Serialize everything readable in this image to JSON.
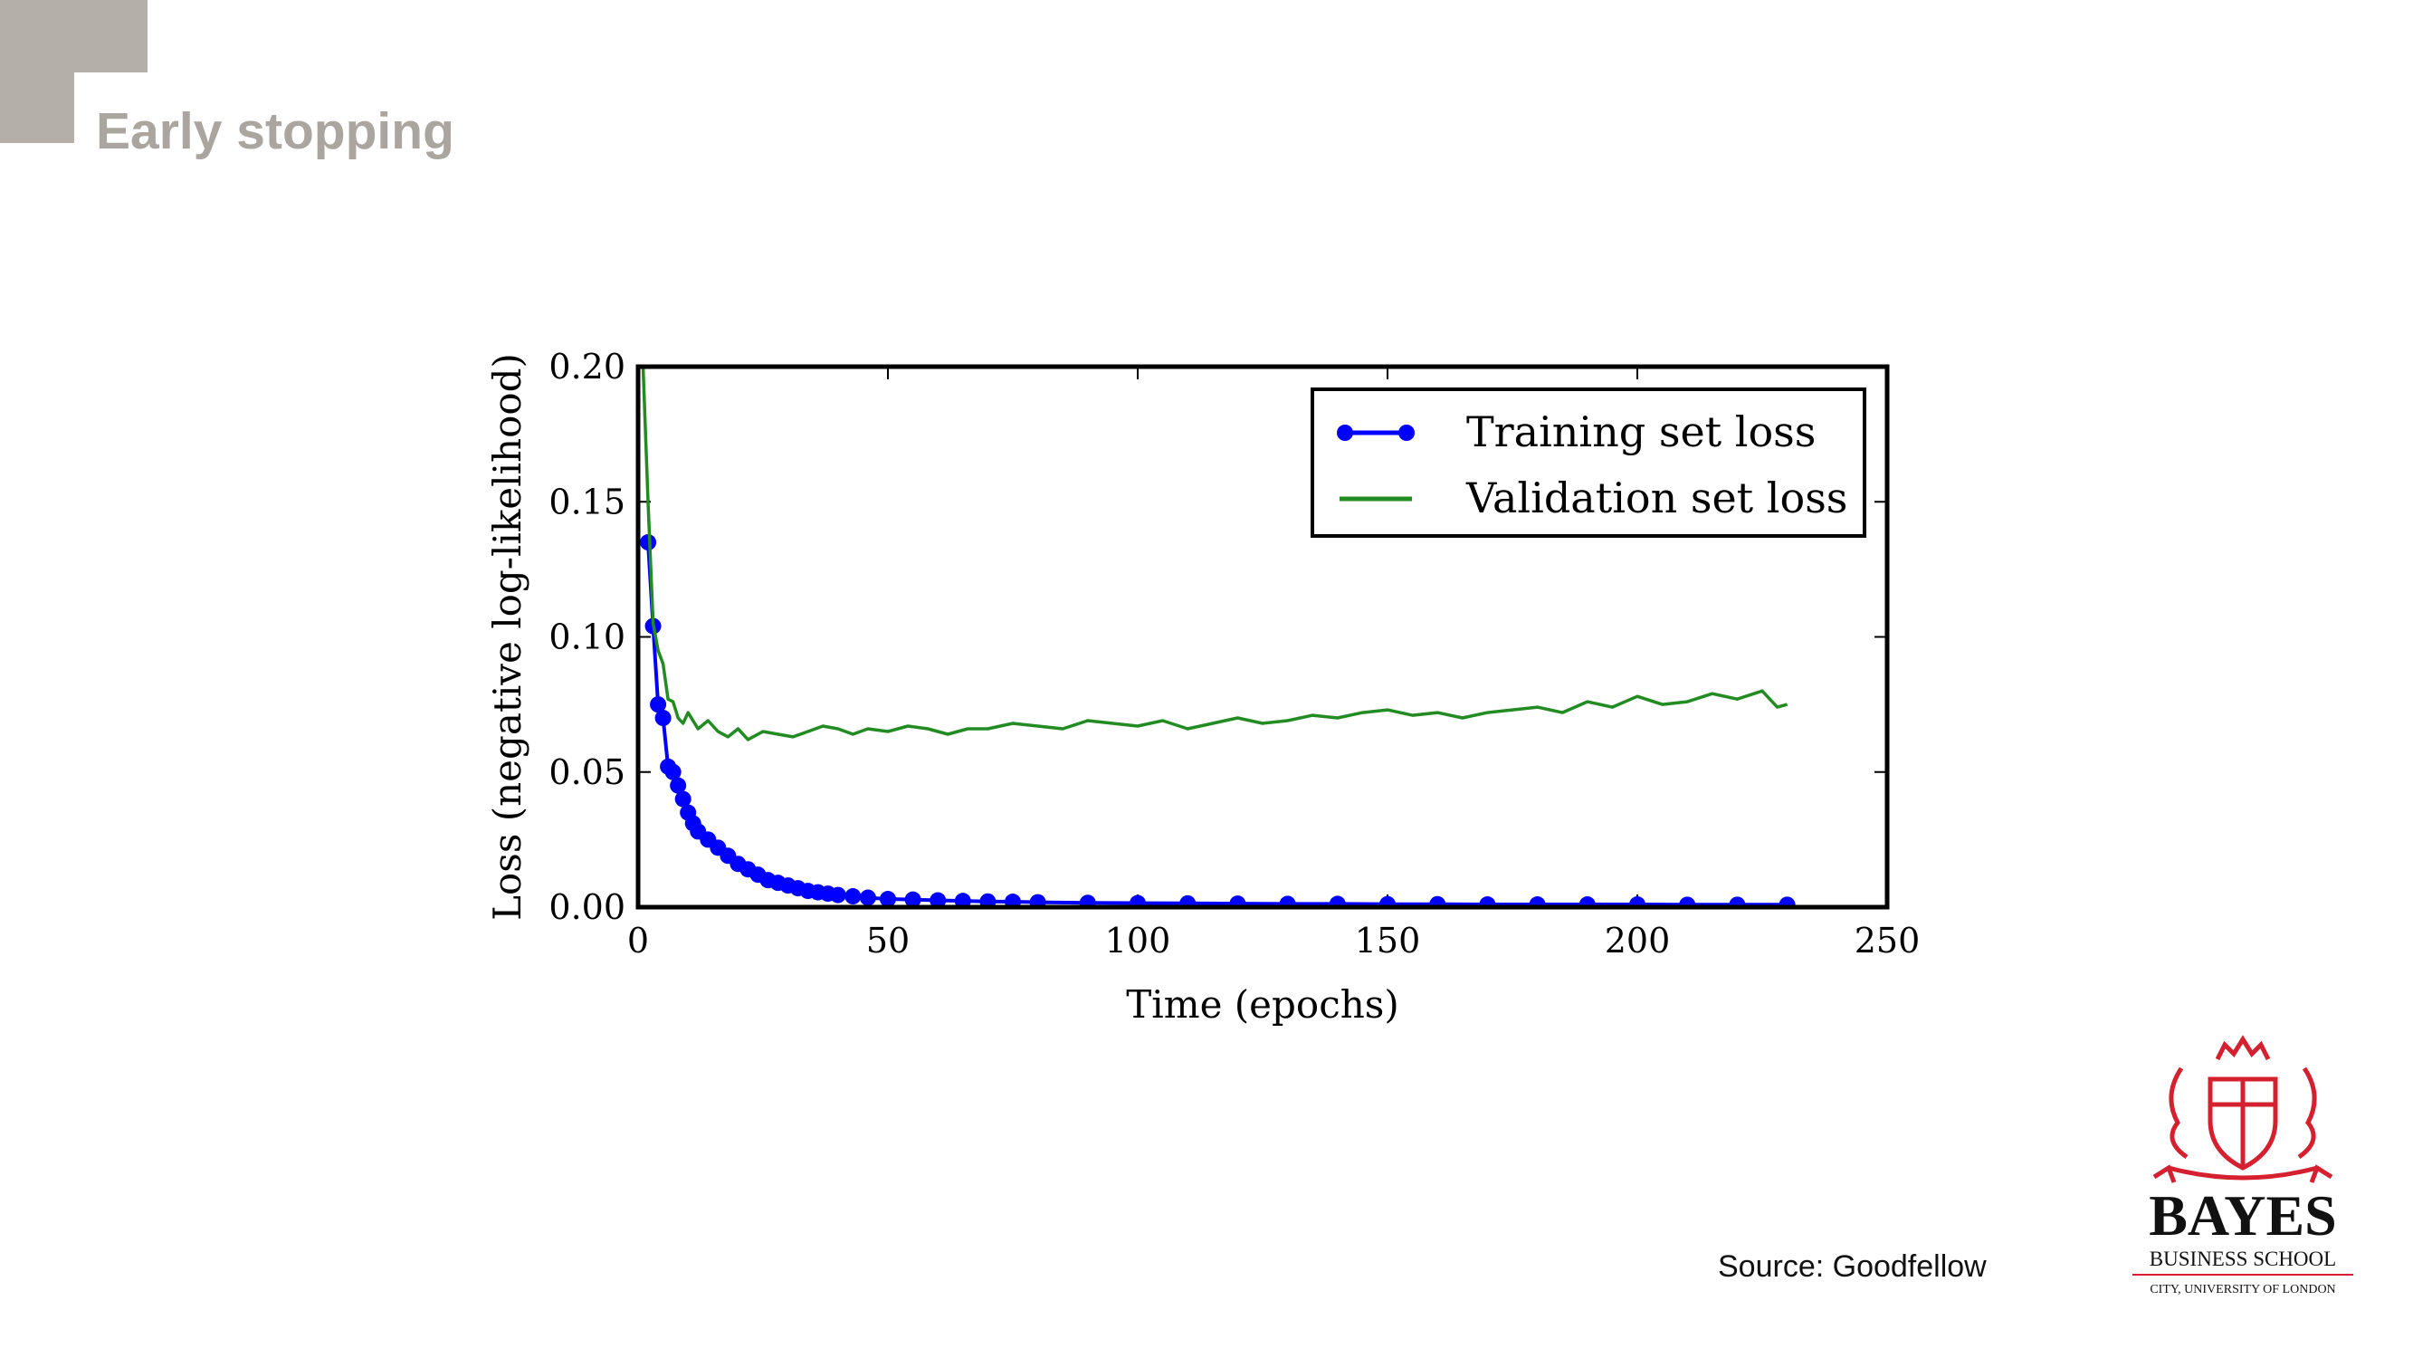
{
  "slide": {
    "title": "Early stopping",
    "source": "Source: Goodfellow",
    "brand_color": "#d4202f",
    "title_color": "#aaa59f",
    "corner_color": "#b4afa8"
  },
  "logo": {
    "wordmark": "BAYES",
    "line1": "BUSINESS SCHOOL",
    "line2": "CITY, UNIVERSITY OF LONDON",
    "icon": "coat-of-arms-icon"
  },
  "chart_data": {
    "type": "line",
    "title": "",
    "xlabel": "Time (epochs)",
    "ylabel": "Loss (negative log-likelihood)",
    "xlim": [
      0,
      250
    ],
    "ylim": [
      0,
      0.2
    ],
    "xticks": [
      0,
      50,
      100,
      150,
      200,
      250
    ],
    "yticks": [
      0.0,
      0.05,
      0.1,
      0.15,
      0.2
    ],
    "xtick_labels": [
      "0",
      "50",
      "100",
      "150",
      "200",
      "250"
    ],
    "ytick_labels": [
      "0.00",
      "0.05",
      "0.10",
      "0.15",
      "0.20"
    ],
    "grid": false,
    "legend_position": "top-right",
    "series": [
      {
        "name": "Training set loss",
        "color": "#0000ff",
        "marker": "circle",
        "x": [
          2,
          3,
          4,
          5,
          6,
          7,
          8,
          9,
          10,
          11,
          12,
          14,
          16,
          18,
          20,
          22,
          24,
          26,
          28,
          30,
          32,
          34,
          36,
          38,
          40,
          43,
          46,
          50,
          55,
          60,
          65,
          70,
          75,
          80,
          90,
          100,
          110,
          120,
          130,
          140,
          150,
          160,
          170,
          180,
          190,
          200,
          210,
          220,
          230
        ],
        "y": [
          0.135,
          0.104,
          0.075,
          0.07,
          0.052,
          0.05,
          0.045,
          0.04,
          0.035,
          0.031,
          0.028,
          0.025,
          0.022,
          0.019,
          0.016,
          0.014,
          0.012,
          0.01,
          0.009,
          0.008,
          0.007,
          0.006,
          0.0055,
          0.005,
          0.0045,
          0.004,
          0.0035,
          0.003,
          0.0028,
          0.0025,
          0.0023,
          0.0021,
          0.002,
          0.0018,
          0.0016,
          0.0015,
          0.0014,
          0.0013,
          0.0012,
          0.0012,
          0.0011,
          0.0011,
          0.001,
          0.001,
          0.001,
          0.001,
          0.0009,
          0.0009,
          0.0009
        ]
      },
      {
        "name": "Validation set loss",
        "color": "#228b22",
        "marker": "none",
        "x": [
          1,
          2,
          3,
          4,
          5,
          6,
          7,
          8,
          9,
          10,
          12,
          14,
          16,
          18,
          20,
          22,
          25,
          28,
          31,
          34,
          37,
          40,
          43,
          46,
          50,
          54,
          58,
          62,
          66,
          70,
          75,
          80,
          85,
          90,
          95,
          100,
          105,
          110,
          115,
          120,
          125,
          130,
          135,
          140,
          145,
          150,
          155,
          160,
          165,
          170,
          175,
          180,
          185,
          190,
          195,
          200,
          205,
          210,
          215,
          220,
          225,
          228,
          230
        ],
        "y": [
          0.2,
          0.15,
          0.105,
          0.095,
          0.09,
          0.077,
          0.076,
          0.07,
          0.068,
          0.072,
          0.066,
          0.069,
          0.065,
          0.063,
          0.066,
          0.062,
          0.065,
          0.064,
          0.063,
          0.065,
          0.067,
          0.066,
          0.064,
          0.066,
          0.065,
          0.067,
          0.066,
          0.064,
          0.066,
          0.066,
          0.068,
          0.067,
          0.066,
          0.069,
          0.068,
          0.067,
          0.069,
          0.066,
          0.068,
          0.07,
          0.068,
          0.069,
          0.071,
          0.07,
          0.072,
          0.073,
          0.071,
          0.072,
          0.07,
          0.072,
          0.073,
          0.074,
          0.072,
          0.076,
          0.074,
          0.078,
          0.075,
          0.076,
          0.079,
          0.077,
          0.08,
          0.074,
          0.075
        ]
      }
    ]
  }
}
